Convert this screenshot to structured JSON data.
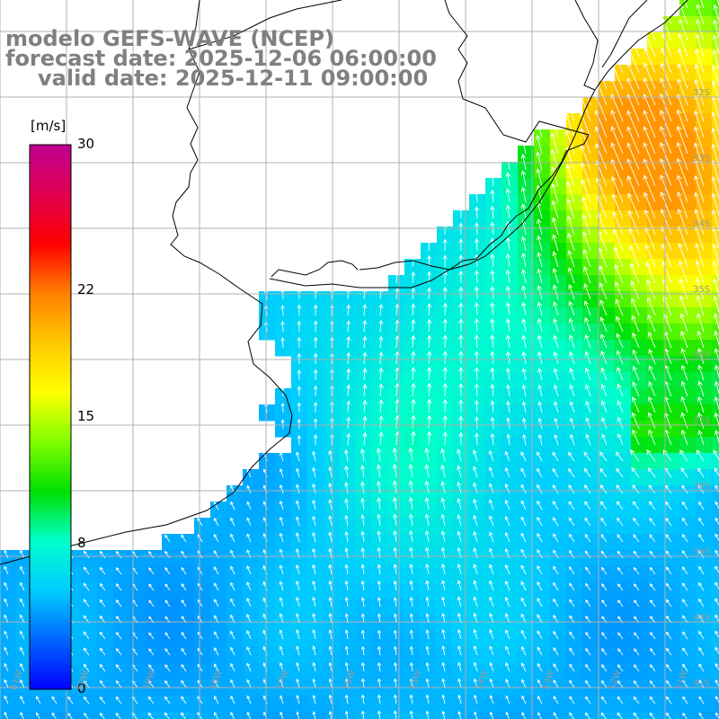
{
  "title": {
    "line1": "modelo GEFS-WAVE (NCEP)",
    "line2": "forecast date: 2025-12-06 06:00:00",
    "line3": "valid date: 2025-12-11 09:00:00"
  },
  "colorbar": {
    "unit": "[m/s]",
    "min": 0,
    "max": 30,
    "ticks": [
      {
        "value": 30,
        "label": "30"
      },
      {
        "value": 22,
        "label": "22"
      },
      {
        "value": 15,
        "label": "15"
      },
      {
        "value": 8,
        "label": "8"
      },
      {
        "value": 0,
        "label": "0"
      }
    ],
    "colors": [
      "#0000ff",
      "#0066ff",
      "#00ccff",
      "#00ffcc",
      "#00e000",
      "#80ff00",
      "#ffff00",
      "#ffc800",
      "#ff8000",
      "#ff0000",
      "#e00050",
      "#c00090"
    ]
  },
  "grid": {
    "lon_labels": [
      "61W",
      "60W",
      "59W",
      "58W",
      "57W",
      "56W",
      "55W",
      "54W",
      "53W",
      "52W",
      "51W"
    ],
    "lat_labels": [
      "32S",
      "33S",
      "34S",
      "35S",
      "36S",
      "37S",
      "38S",
      "39S",
      "40S",
      "41S"
    ],
    "line_color": "#b0b0b0"
  },
  "land_color": "#ffffff",
  "arrow_color": "#ffffff"
}
